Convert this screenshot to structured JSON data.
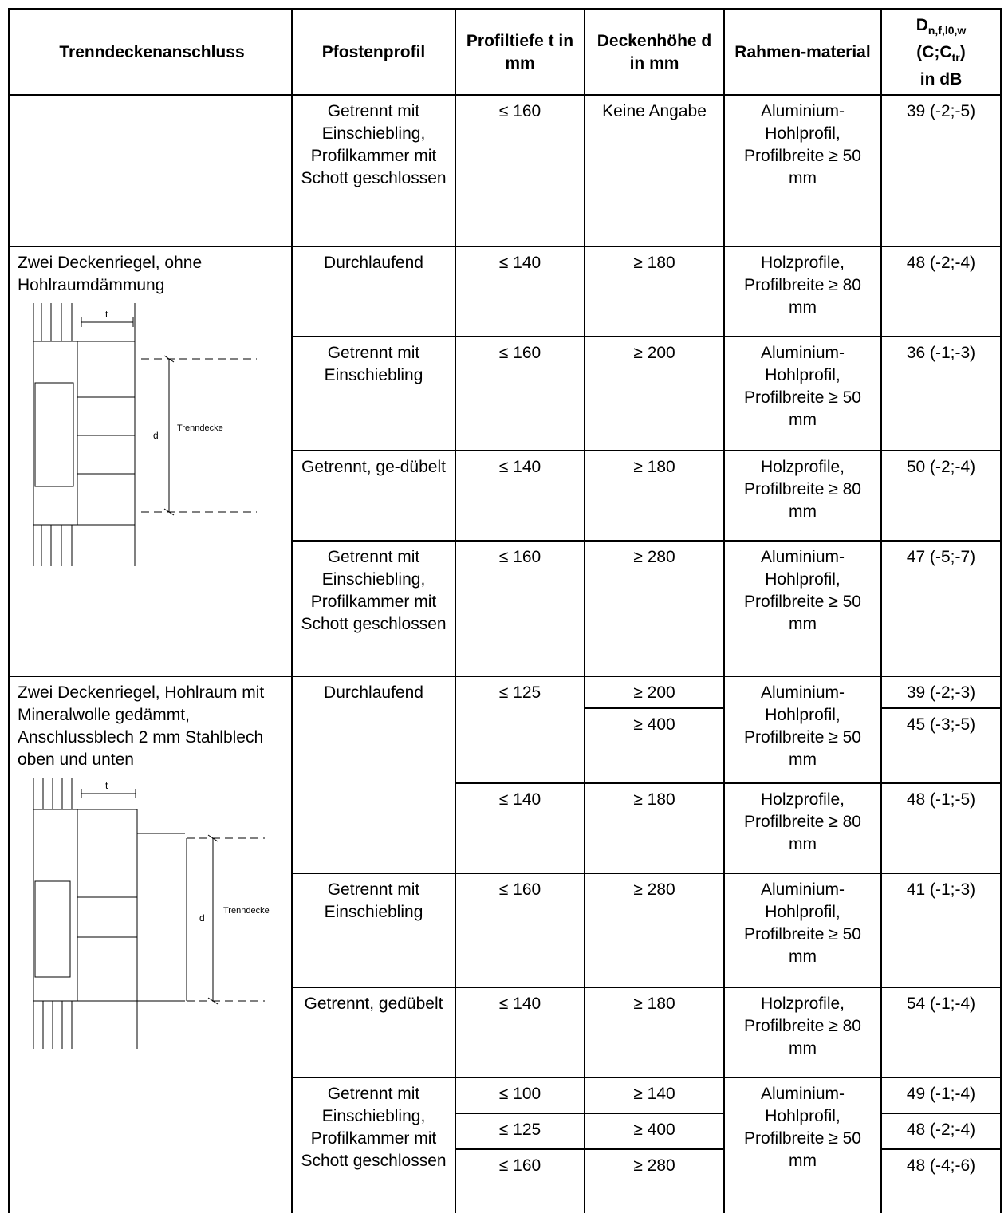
{
  "header": {
    "col1": "Trenndeckenanschluss",
    "col2": "Pfostenprofil",
    "col3": "Profiltiefe t in mm",
    "col4": "Deckenhöhe d in mm",
    "col5": "Rahmen-material",
    "col6_main": "D",
    "col6_sub": "n,f,l0,w",
    "col6_line2a": "(C;C",
    "col6_line2sub": "tr",
    "col6_line2b": ")",
    "col6_line3": "in dB"
  },
  "drawing_labels": {
    "t": "t",
    "d": "d",
    "trenndecke": "Trenndecke"
  },
  "group1": {
    "rows": [
      {
        "profil": "Getrennt mit Einschiebling, Profilkammer mit Schott geschlossen",
        "tiefe": "≤ 160",
        "hoehe": "Keine Angabe",
        "material": "Aluminium-Hohlprofil, Profilbreite ≥ 50 mm",
        "db": "39 (-2;-5)"
      }
    ]
  },
  "group2": {
    "label": "Zwei Deckenriegel, ohne Hohlraumdämmung",
    "rows": [
      {
        "profil": "Durchlaufend",
        "tiefe": "≤ 140",
        "hoehe": "≥ 180",
        "material": "Holzprofile, Profilbreite ≥ 80 mm",
        "db": "48 (-2;-4)"
      },
      {
        "profil": "Getrennt mit Einschiebling",
        "tiefe": "≤ 160",
        "hoehe": "≥ 200",
        "material": "Aluminium-Hohlprofil, Profilbreite ≥ 50 mm",
        "db": "36 (-1;-3)"
      },
      {
        "profil": "Getrennt, ge-dübelt",
        "tiefe": "≤ 140",
        "hoehe": "≥ 180",
        "material": "Holzprofile, Profilbreite ≥ 80 mm",
        "db": "50 (-2;-4)"
      },
      {
        "profil": "Getrennt mit Einschiebling, Profilkammer mit Schott geschlossen",
        "tiefe": "≤ 160",
        "hoehe": "≥ 280",
        "material": "Aluminium-Hohlprofil, Profilbreite ≥ 50 mm",
        "db": "47 (-5;-7)"
      }
    ]
  },
  "group3": {
    "label": "Zwei Deckenriegel, Hohlraum mit Mineralwolle gedämmt, Anschlussblech 2 mm Stahlblech oben und unten",
    "durchlaufend": {
      "profil": "Durchlaufend",
      "tiefe_a": "≤ 125",
      "hoehe_a1": "≥ 200",
      "db_a1": "39 (-2;-3)",
      "hoehe_a2": "≥ 400",
      "db_a2": "45 (-3;-5)",
      "material_a": "Aluminium-Hohlprofil, Profilbreite ≥ 50 mm",
      "tiefe_b": "≤ 140",
      "hoehe_b": "≥ 180",
      "material_b": "Holzprofile, Profilbreite ≥ 80 mm",
      "db_b": "48 (-1;-5)"
    },
    "rows": [
      {
        "profil": "Getrennt mit Einschiebling",
        "tiefe": "≤ 160",
        "hoehe": "≥ 280",
        "material": "Aluminium-Hohlprofil, Profilbreite ≥ 50 mm",
        "db": "41 (-1;-3)"
      },
      {
        "profil": "Getrennt, gedübelt",
        "tiefe": "≤ 140",
        "hoehe": "≥ 180",
        "material": "Holzprofile, Profilbreite ≥ 80 mm",
        "db": "54 (-1;-4)"
      }
    ],
    "schott": {
      "profil": "Getrennt mit Einschiebling, Profilkammer mit Schott geschlossen",
      "material": "Aluminium-Hohlprofil, Profilbreite ≥ 50 mm",
      "sub": [
        {
          "tiefe": "≤ 100",
          "hoehe": "≥ 140",
          "db": "49 (-1;-4)"
        },
        {
          "tiefe": "≤ 125",
          "hoehe": "≥ 400",
          "db": "48 (-2;-4)"
        },
        {
          "tiefe": "≤ 160",
          "hoehe": "≥ 280",
          "db": "48 (-4;-6)"
        }
      ]
    }
  }
}
